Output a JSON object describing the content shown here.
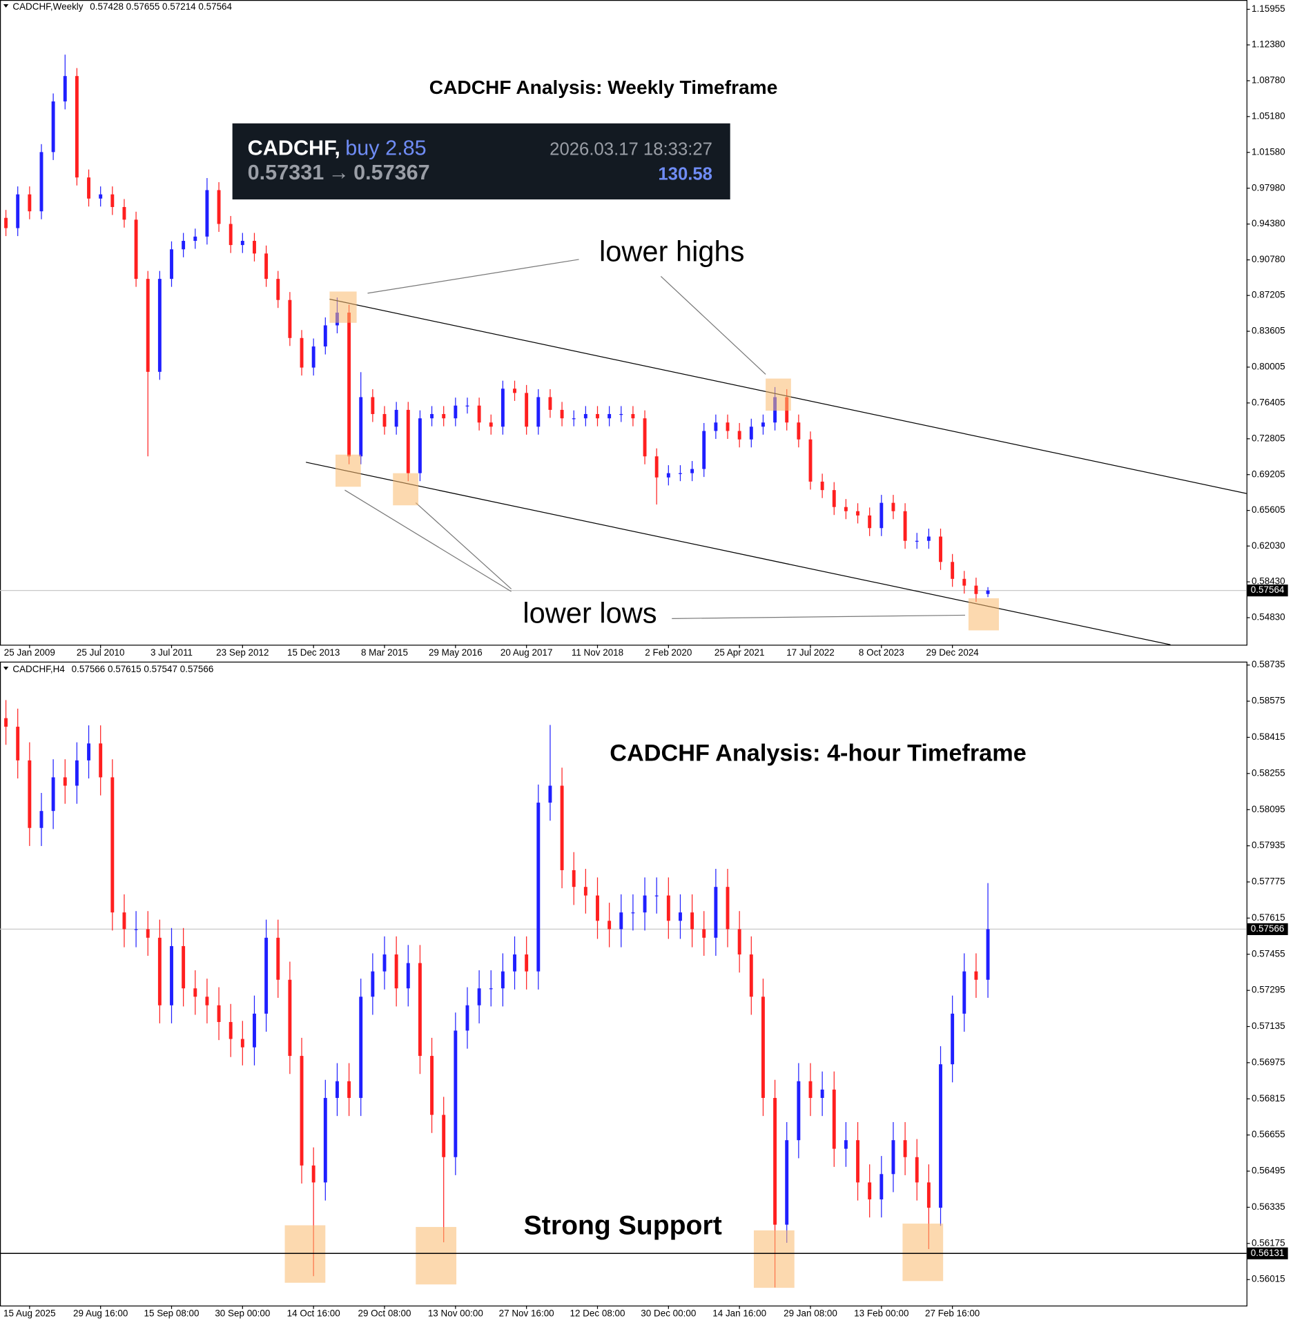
{
  "chart_data": [
    {
      "type": "candlestick",
      "header": {
        "symbol": "CADCHF,Weekly",
        "ohlc": "0.57428 0.57655 0.57214 0.57564"
      },
      "title": "CADCHF Analysis: Weekly Timeframe",
      "trade": {
        "symbol": "CADCHF,",
        "side": "buy 2.85",
        "time": "2026.03.17 18:33:27",
        "open_price": "0.57331",
        "arrow": "→",
        "current": "0.57367",
        "profit": "130.58"
      },
      "annotations": [
        "lower highs",
        "lower lows"
      ],
      "up_color": "#1f1fff",
      "down_color": "#ff1f1f",
      "categories": [
        null,
        null,
        "25 Jan 2009",
        null,
        null,
        null,
        null,
        null,
        "25 Jul 2010",
        null,
        null,
        null,
        null,
        null,
        "3 Jul 2011",
        null,
        null,
        null,
        null,
        null,
        "23 Sep 2012",
        null,
        null,
        null,
        null,
        null,
        "15 Dec 2013",
        null,
        null,
        null,
        null,
        null,
        "8 Mar 2015",
        null,
        null,
        null,
        null,
        null,
        "29 May 2016",
        null,
        null,
        null,
        null,
        null,
        "20 Aug 2017",
        null,
        null,
        null,
        null,
        null,
        "11 Nov 2018",
        null,
        null,
        null,
        null,
        null,
        "2 Feb 2020",
        null,
        null,
        null,
        null,
        null,
        "25 Apr 2021",
        null,
        null,
        null,
        null,
        null,
        "17 Jul 2022",
        null,
        null,
        null,
        null,
        null,
        "8 Oct 2023",
        null,
        null,
        null,
        null,
        null,
        "29 Dec 2024",
        null,
        null,
        null
      ],
      "open": [
        0.95,
        0.9397,
        0.9736,
        0.9566,
        1.0161,
        1.067,
        1.0925,
        0.9906,
        0.9694,
        0.9736,
        0.9609,
        0.9482,
        0.8887,
        0.7953,
        0.8887,
        0.9184,
        0.9269,
        0.9312,
        0.9779,
        0.9439,
        0.9227,
        0.9269,
        0.9142,
        0.8887,
        0.8675,
        0.8293,
        0.7996,
        0.8208,
        0.842,
        0.8548,
        0.7104,
        0.7699,
        0.7529,
        0.7402,
        0.7571,
        0.6935,
        0.7486,
        0.7529,
        0.7486,
        0.7614,
        0.7614,
        0.7444,
        0.7402,
        0.7784,
        0.7741,
        0.7402,
        0.7699,
        0.7571,
        0.7486,
        0.7486,
        0.7529,
        0.7486,
        0.7529,
        0.7529,
        0.7486,
        0.7104,
        0.6892,
        0.6935,
        0.6935,
        0.6977,
        0.7359,
        0.7444,
        0.7359,
        0.7274,
        0.7402,
        0.7444,
        0.7699,
        0.7444,
        0.7274,
        0.685,
        0.6765,
        0.6595,
        0.6553,
        0.651,
        0.6383,
        0.6637,
        0.6553,
        0.6255,
        0.6255,
        0.6298,
        0.6043,
        0.5873,
        0.5805,
        0.5721
      ],
      "high": [
        0.958,
        0.9816,
        0.9816,
        1.0241,
        1.075,
        1.114,
        1.1005,
        0.9986,
        0.9816,
        0.9816,
        0.9689,
        0.9562,
        0.8967,
        0.8967,
        0.9264,
        0.9349,
        0.9392,
        0.99,
        0.9859,
        0.9519,
        0.9349,
        0.9349,
        0.9222,
        0.8967,
        0.8755,
        0.8373,
        0.8288,
        0.85,
        0.87,
        0.8628,
        0.795,
        0.7779,
        0.7609,
        0.7651,
        0.7651,
        0.7566,
        0.7609,
        0.7609,
        0.7694,
        0.7694,
        0.7694,
        0.7524,
        0.7864,
        0.7864,
        0.7821,
        0.7779,
        0.7779,
        0.7651,
        0.7566,
        0.7609,
        0.7609,
        0.7609,
        0.7609,
        0.7609,
        0.7566,
        0.7184,
        0.7015,
        0.7015,
        0.7057,
        0.7439,
        0.7524,
        0.7524,
        0.7439,
        0.7482,
        0.7524,
        0.78,
        0.7779,
        0.7524,
        0.7354,
        0.693,
        0.6845,
        0.6675,
        0.6633,
        0.659,
        0.6717,
        0.6717,
        0.6633,
        0.6335,
        0.6378,
        0.6378,
        0.6123,
        0.5953,
        0.5885,
        0.579
      ],
      "low": [
        0.9317,
        0.9317,
        0.9486,
        0.9486,
        1.0081,
        1.059,
        0.9826,
        0.9614,
        0.9614,
        0.9529,
        0.9402,
        0.8807,
        0.7104,
        0.7873,
        0.8807,
        0.9104,
        0.9189,
        0.9232,
        0.9359,
        0.9147,
        0.9147,
        0.9062,
        0.8807,
        0.8595,
        0.8213,
        0.7916,
        0.7916,
        0.8128,
        0.834,
        0.7024,
        0.7024,
        0.7449,
        0.7322,
        0.7322,
        0.6855,
        0.6855,
        0.7406,
        0.7406,
        0.7406,
        0.7534,
        0.7364,
        0.7322,
        0.7322,
        0.7661,
        0.7322,
        0.7322,
        0.7491,
        0.7406,
        0.7406,
        0.7406,
        0.7406,
        0.7406,
        0.7449,
        0.7406,
        0.7024,
        0.662,
        0.6812,
        0.6855,
        0.6855,
        0.6897,
        0.7279,
        0.7279,
        0.7194,
        0.7194,
        0.7322,
        0.7364,
        0.7364,
        0.7194,
        0.677,
        0.6685,
        0.6515,
        0.6473,
        0.643,
        0.6303,
        0.6303,
        0.6473,
        0.6175,
        0.6175,
        0.6175,
        0.5963,
        0.5793,
        0.5725,
        0.5641,
        0.569
      ],
      "close": [
        0.9397,
        0.9736,
        0.9566,
        1.0161,
        1.067,
        1.0925,
        0.9906,
        0.9694,
        0.9736,
        0.9609,
        0.9482,
        0.8887,
        0.7953,
        0.8887,
        0.9184,
        0.9269,
        0.9312,
        0.9779,
        0.9439,
        0.9227,
        0.9269,
        0.9142,
        0.8887,
        0.8675,
        0.8293,
        0.7996,
        0.8208,
        0.842,
        0.8548,
        0.7104,
        0.7699,
        0.7529,
        0.7402,
        0.7571,
        0.6935,
        0.7486,
        0.7529,
        0.7486,
        0.7614,
        0.7614,
        0.7444,
        0.7402,
        0.7784,
        0.7741,
        0.7402,
        0.7699,
        0.7571,
        0.7486,
        0.7486,
        0.7529,
        0.7486,
        0.7529,
        0.7529,
        0.7486,
        0.7104,
        0.6892,
        0.6935,
        0.6935,
        0.6977,
        0.7359,
        0.7444,
        0.7359,
        0.7274,
        0.7402,
        0.7444,
        0.7699,
        0.7444,
        0.7274,
        0.685,
        0.6765,
        0.6595,
        0.6553,
        0.651,
        0.6383,
        0.6637,
        0.6553,
        0.6255,
        0.6255,
        0.6298,
        0.6043,
        0.5873,
        0.5805,
        0.5721,
        0.5756
      ],
      "ylim": [
        0.5211,
        1.1689
      ],
      "yticks": [
        1.15955,
        {
          "value": 1.1238,
          "label": "1.12380"
        },
        {
          "value": 1.0878,
          "label": "1.08780"
        },
        {
          "value": 1.0518,
          "label": "1.05180"
        },
        {
          "value": 1.0158,
          "label": "1.01580"
        },
        {
          "value": 0.9798,
          "label": "0.97980"
        },
        {
          "value": 0.9438,
          "label": "0.94380"
        },
        {
          "value": 0.9078,
          "label": "0.90780"
        },
        0.87205,
        0.83605,
        0.80005,
        0.76405,
        0.72805,
        0.69205,
        0.65605,
        {
          "value": 0.6203,
          "label": "0.62030"
        },
        {
          "value": 0.5843,
          "label": "0.58430"
        },
        {
          "value": 0.5483,
          "label": "0.54830"
        }
      ],
      "current_price": 0.57564
    },
    {
      "type": "candlestick",
      "header": {
        "symbol": "CADCHF,H4",
        "ohlc": "0.57566 0.57615 0.57547 0.57566"
      },
      "title": "CADCHF Analysis: 4-hour Timeframe",
      "annotations": [
        "Strong Support"
      ],
      "up_color": "#1f1fff",
      "down_color": "#ff1f1f",
      "categories": [
        null,
        null,
        "15 Aug 2025",
        null,
        null,
        null,
        null,
        null,
        "29 Aug 16:00",
        null,
        null,
        null,
        null,
        null,
        "15 Sep 08:00",
        null,
        null,
        null,
        null,
        null,
        "30 Sep 00:00",
        null,
        null,
        null,
        null,
        null,
        "14 Oct 16:00",
        null,
        null,
        null,
        null,
        null,
        "29 Oct 08:00",
        null,
        null,
        null,
        null,
        null,
        "13 Nov 00:00",
        null,
        null,
        null,
        null,
        null,
        "27 Nov 16:00",
        null,
        null,
        null,
        null,
        null,
        "12 Dec 08:00",
        null,
        null,
        null,
        null,
        null,
        "30 Dec 00:00",
        null,
        null,
        null,
        null,
        null,
        "14 Jan 16:00",
        null,
        null,
        null,
        null,
        null,
        "29 Jan 08:00",
        null,
        null,
        null,
        null,
        null,
        "13 Feb 00:00",
        null,
        null,
        null,
        null,
        null,
        "27 Feb 16:00",
        null,
        null,
        null
      ],
      "open": [
        0.585,
        0.58462,
        0.58313,
        0.58014,
        0.58089,
        0.58238,
        0.58201,
        0.58313,
        0.58388,
        0.58238,
        0.5764,
        0.57566,
        0.57566,
        0.57528,
        0.57229,
        0.57491,
        0.57304,
        0.57267,
        0.57229,
        0.57155,
        0.5708,
        0.57043,
        0.57192,
        0.57528,
        0.57342,
        0.57005,
        0.5652,
        0.56445,
        0.56819,
        0.56893,
        0.56819,
        0.57267,
        0.57379,
        0.57454,
        0.57304,
        0.57416,
        0.57005,
        0.56744,
        0.56557,
        0.57117,
        0.57229,
        0.57304,
        0.57304,
        0.57379,
        0.57454,
        0.57379,
        0.58126,
        0.58201,
        0.57827,
        0.57753,
        0.57715,
        0.57603,
        0.57566,
        0.5764,
        0.5764,
        0.57715,
        0.57715,
        0.57603,
        0.5764,
        0.57566,
        0.57528,
        0.57753,
        0.57566,
        0.57454,
        0.57267,
        0.56819,
        0.56258,
        0.56632,
        0.56893,
        0.56819,
        0.56856,
        0.56594,
        0.56632,
        0.56445,
        0.5637,
        0.56482,
        0.56632,
        0.56557,
        0.56445,
        0.56333,
        0.56968,
        0.57192,
        0.57379,
        0.57342
      ],
      "high": [
        0.5858,
        0.58542,
        0.58393,
        0.58169,
        0.58318,
        0.58318,
        0.58393,
        0.58468,
        0.58468,
        0.58318,
        0.5772,
        0.57646,
        0.57646,
        0.57608,
        0.57571,
        0.57571,
        0.57384,
        0.57347,
        0.57309,
        0.57235,
        0.5716,
        0.57272,
        0.57608,
        0.57608,
        0.57422,
        0.57085,
        0.566,
        0.56899,
        0.56973,
        0.56973,
        0.57347,
        0.57459,
        0.57534,
        0.57534,
        0.57496,
        0.57496,
        0.57085,
        0.56824,
        0.57197,
        0.57309,
        0.57384,
        0.57384,
        0.57459,
        0.57534,
        0.57534,
        0.58206,
        0.5847,
        0.58281,
        0.57907,
        0.57833,
        0.57795,
        0.57683,
        0.5772,
        0.5772,
        0.57795,
        0.57795,
        0.57795,
        0.5772,
        0.5772,
        0.57646,
        0.57833,
        0.57833,
        0.57646,
        0.57534,
        0.57347,
        0.56899,
        0.56712,
        0.56973,
        0.56973,
        0.56936,
        0.56936,
        0.56712,
        0.56712,
        0.56525,
        0.56562,
        0.56712,
        0.56712,
        0.56637,
        0.56525,
        0.57048,
        0.57272,
        0.57459,
        0.57459,
        0.5777
      ],
      "low": [
        0.58382,
        0.58233,
        0.57934,
        0.57934,
        0.58009,
        0.58121,
        0.58121,
        0.58233,
        0.58158,
        0.5756,
        0.57486,
        0.57486,
        0.57448,
        0.57149,
        0.57149,
        0.57224,
        0.57187,
        0.57149,
        0.57075,
        0.57,
        0.56963,
        0.56963,
        0.57112,
        0.57262,
        0.56925,
        0.5644,
        0.5603,
        0.56365,
        0.56739,
        0.56739,
        0.56739,
        0.57187,
        0.57299,
        0.57224,
        0.57224,
        0.56925,
        0.56664,
        0.5618,
        0.56477,
        0.57037,
        0.57149,
        0.57224,
        0.57224,
        0.57299,
        0.57299,
        0.57299,
        0.58046,
        0.57747,
        0.57673,
        0.57635,
        0.57523,
        0.57486,
        0.57486,
        0.5756,
        0.5756,
        0.57635,
        0.57523,
        0.57523,
        0.57486,
        0.57448,
        0.57448,
        0.57486,
        0.57374,
        0.57187,
        0.56739,
        0.5598,
        0.56178,
        0.56552,
        0.56739,
        0.56739,
        0.56514,
        0.56514,
        0.56365,
        0.5629,
        0.5629,
        0.56402,
        0.56477,
        0.56365,
        0.5615,
        0.56253,
        0.56888,
        0.57112,
        0.57262,
        0.57262
      ],
      "close": [
        0.58462,
        0.58313,
        0.58014,
        0.58089,
        0.58238,
        0.58201,
        0.58313,
        0.58388,
        0.58238,
        0.5764,
        0.57566,
        0.57566,
        0.57528,
        0.57229,
        0.57491,
        0.57304,
        0.57267,
        0.57229,
        0.57155,
        0.5708,
        0.57043,
        0.57192,
        0.57528,
        0.57342,
        0.57005,
        0.5652,
        0.56445,
        0.56819,
        0.56893,
        0.56819,
        0.57267,
        0.57379,
        0.57454,
        0.57304,
        0.57416,
        0.57005,
        0.56744,
        0.56557,
        0.57117,
        0.57229,
        0.57304,
        0.57304,
        0.57379,
        0.57454,
        0.57379,
        0.58126,
        0.58201,
        0.57827,
        0.57753,
        0.57715,
        0.57603,
        0.57566,
        0.5764,
        0.5764,
        0.57715,
        0.57715,
        0.57603,
        0.5764,
        0.57566,
        0.57528,
        0.57753,
        0.57566,
        0.57454,
        0.57267,
        0.56819,
        0.56258,
        0.56632,
        0.56893,
        0.56819,
        0.56856,
        0.56594,
        0.56632,
        0.56445,
        0.5637,
        0.56482,
        0.56632,
        0.56557,
        0.56445,
        0.56333,
        0.56968,
        0.57192,
        0.57379,
        0.57342,
        0.57566
      ],
      "ylim": [
        0.559,
        0.5875
      ],
      "yticks": [
        0.58735,
        0.58575,
        0.58415,
        0.58255,
        0.58095,
        0.57935,
        0.57775,
        0.57615,
        0.57455,
        0.57295,
        0.57135,
        0.56975,
        0.56815,
        0.56655,
        0.56495,
        0.56335,
        0.56175,
        0.56015
      ],
      "current_price": 0.57566,
      "support": 0.56131
    }
  ]
}
